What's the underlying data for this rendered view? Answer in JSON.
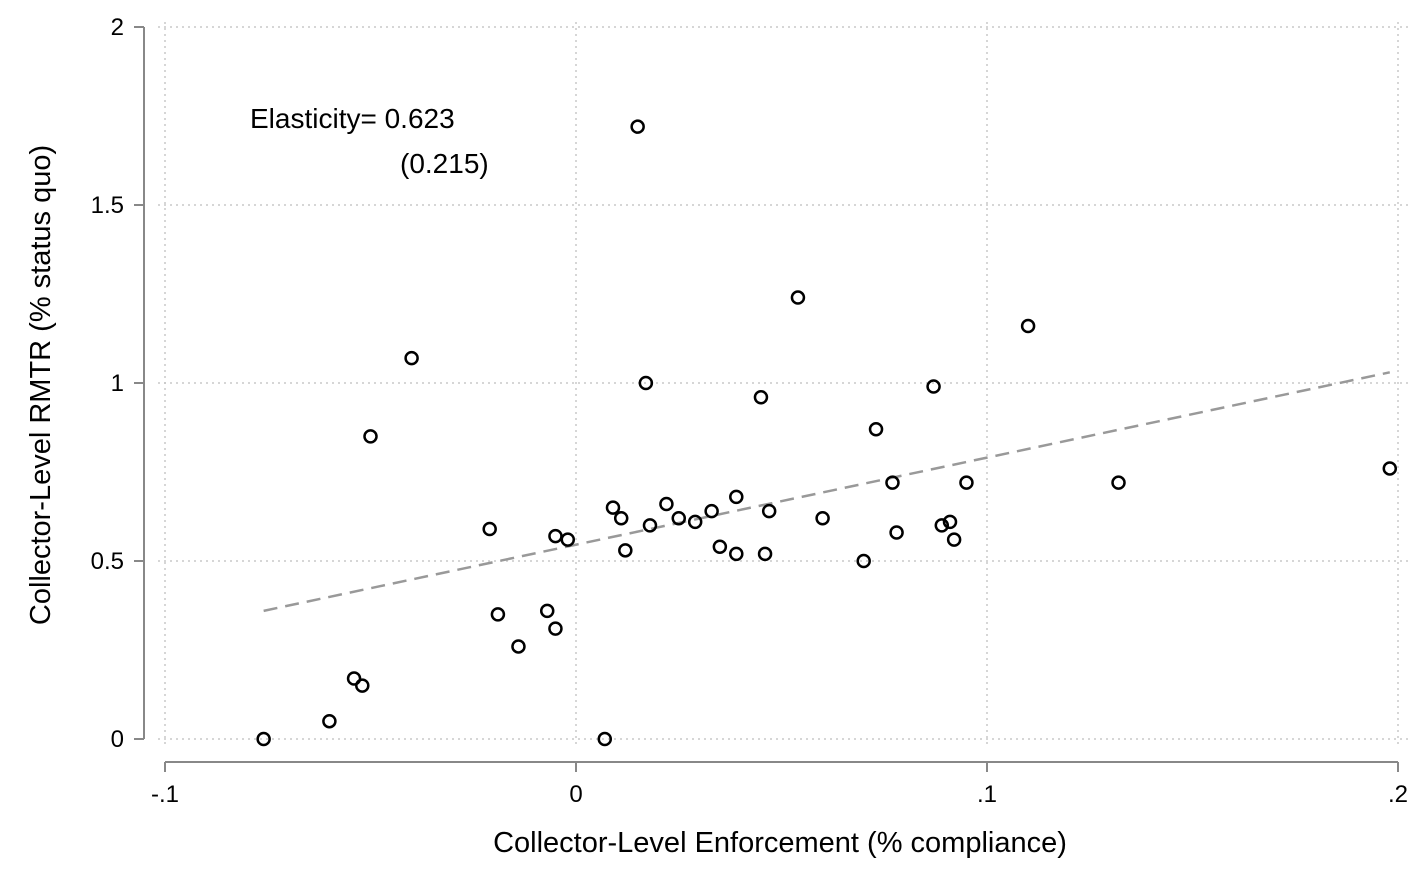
{
  "chart_data": {
    "type": "scatter",
    "title": "",
    "xlabel": "Collector-Level Enforcement (% compliance)",
    "ylabel": "Collector-Level RMTR (% status quo)",
    "xlim": [
      -0.1,
      0.2
    ],
    "ylim": [
      0,
      2
    ],
    "x_ticks": [
      -0.1,
      0,
      0.1,
      0.2
    ],
    "x_tick_labels": [
      "-.1",
      "0",
      ".1",
      ".2"
    ],
    "y_ticks": [
      0,
      0.5,
      1,
      1.5,
      2
    ],
    "y_tick_labels": [
      "0",
      "0.5",
      "1",
      "1.5",
      "2"
    ],
    "grid": true,
    "annotations": [
      "Elasticity= 0.623",
      "(0.215)"
    ],
    "fit_line": {
      "style": "dashed",
      "color": "#999999",
      "x": [
        -0.076,
        0.198
      ],
      "y": [
        0.36,
        1.03
      ]
    },
    "points": [
      {
        "x": -0.076,
        "y": 0.0
      },
      {
        "x": -0.06,
        "y": 0.05
      },
      {
        "x": -0.054,
        "y": 0.17
      },
      {
        "x": -0.052,
        "y": 0.15
      },
      {
        "x": -0.05,
        "y": 0.85
      },
      {
        "x": -0.04,
        "y": 1.07
      },
      {
        "x": -0.021,
        "y": 0.59
      },
      {
        "x": -0.019,
        "y": 0.35
      },
      {
        "x": -0.014,
        "y": 0.26
      },
      {
        "x": -0.007,
        "y": 0.36
      },
      {
        "x": -0.005,
        "y": 0.57
      },
      {
        "x": -0.005,
        "y": 0.31
      },
      {
        "x": -0.002,
        "y": 0.56
      },
      {
        "x": 0.007,
        "y": 0.0
      },
      {
        "x": 0.009,
        "y": 0.65
      },
      {
        "x": 0.011,
        "y": 0.62
      },
      {
        "x": 0.012,
        "y": 0.53
      },
      {
        "x": 0.015,
        "y": 1.72
      },
      {
        "x": 0.017,
        "y": 1.0
      },
      {
        "x": 0.018,
        "y": 0.6
      },
      {
        "x": 0.022,
        "y": 0.66
      },
      {
        "x": 0.025,
        "y": 0.62
      },
      {
        "x": 0.029,
        "y": 0.61
      },
      {
        "x": 0.033,
        "y": 0.64
      },
      {
        "x": 0.035,
        "y": 0.54
      },
      {
        "x": 0.039,
        "y": 0.68
      },
      {
        "x": 0.039,
        "y": 0.52
      },
      {
        "x": 0.045,
        "y": 0.96
      },
      {
        "x": 0.046,
        "y": 0.52
      },
      {
        "x": 0.047,
        "y": 0.64
      },
      {
        "x": 0.054,
        "y": 1.24
      },
      {
        "x": 0.06,
        "y": 0.62
      },
      {
        "x": 0.07,
        "y": 0.5
      },
      {
        "x": 0.073,
        "y": 0.87
      },
      {
        "x": 0.077,
        "y": 0.72
      },
      {
        "x": 0.078,
        "y": 0.58
      },
      {
        "x": 0.087,
        "y": 0.99
      },
      {
        "x": 0.089,
        "y": 0.6
      },
      {
        "x": 0.091,
        "y": 0.61
      },
      {
        "x": 0.092,
        "y": 0.56
      },
      {
        "x": 0.095,
        "y": 0.72
      },
      {
        "x": 0.11,
        "y": 1.16
      },
      {
        "x": 0.132,
        "y": 0.72
      },
      {
        "x": 0.198,
        "y": 0.76
      }
    ]
  }
}
